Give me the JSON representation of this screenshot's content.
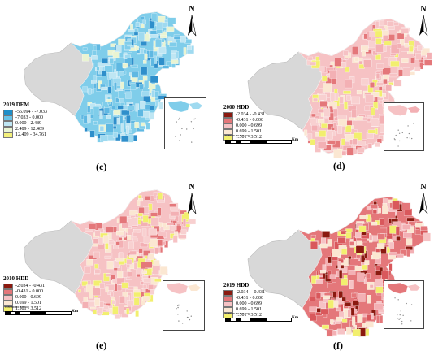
{
  "panels": [
    {
      "id": "c",
      "letter": "(c)",
      "legend": {
        "title": "2019 DEM",
        "items": [
          {
            "label": "-55.094 - -7.033",
            "color": "#1e8ec8"
          },
          {
            "label": "-7.033 - 0.000",
            "color": "#68c3e8"
          },
          {
            "label": "0.000 - 2.489",
            "color": "#bfe6f3"
          },
          {
            "label": "2.489 - 12.409",
            "color": "#e9f4d2"
          },
          {
            "label": "12.409 - 34.761",
            "color": "#f3f07a"
          }
        ]
      },
      "palette": [
        "#7fcdea",
        "#9fdaf0",
        "#5fb8e2",
        "#bfe6f3",
        "#2f8fcb",
        "#e9f4d2"
      ],
      "scalebar": null
    },
    {
      "id": "d",
      "letter": "(d)",
      "legend": {
        "title": "2000 HDD",
        "items": [
          {
            "label": "-2.034 - -0.431",
            "color": "#8b1a10"
          },
          {
            "label": "-0.431 - 0.000",
            "color": "#e4777a"
          },
          {
            "label": "0.000 - 0.699",
            "color": "#f6c2c4"
          },
          {
            "label": "0.699 - 1.501",
            "color": "#fbe7d2"
          },
          {
            "label": "1.501 - 3.512",
            "color": "#f2ef6e"
          }
        ]
      },
      "palette": [
        "#f6c2c4",
        "#f3b0b4",
        "#f8d0d0",
        "#e4777a",
        "#fbe7d2",
        "#f2ef6e"
      ],
      "scalebar": {
        "ticks": "0  150 300    600     900    1,200",
        "unit": "Km"
      }
    },
    {
      "id": "e",
      "letter": "(e)",
      "legend": {
        "title": "2010 HDD",
        "items": [
          {
            "label": "-2.034 - -0.431",
            "color": "#8b1a10"
          },
          {
            "label": "-0.431 - 0.000",
            "color": "#e4777a"
          },
          {
            "label": "0.000 - 0.699",
            "color": "#f6c2c4"
          },
          {
            "label": "0.699 - 1.501",
            "color": "#fbe7d2"
          },
          {
            "label": "1.501 - 3.512",
            "color": "#f2ef6e"
          }
        ]
      },
      "palette": [
        "#f6c2c4",
        "#fbe7d2",
        "#f3b0b4",
        "#e4777a",
        "#f2ef6e",
        "#f8d0d0"
      ],
      "scalebar": {
        "ticks": "0  150 300    600     900    1,200",
        "unit": "Km"
      }
    },
    {
      "id": "f",
      "letter": "(f)",
      "legend": {
        "title": "2019 HDD",
        "items": [
          {
            "label": "-2.034 - -0.431",
            "color": "#8b1a10"
          },
          {
            "label": "-0.431 - 0.000",
            "color": "#e4777a"
          },
          {
            "label": "0.000 - 0.699",
            "color": "#f6c2c4"
          },
          {
            "label": "0.699 - 1.501",
            "color": "#fbe7d2"
          },
          {
            "label": "1.501 - 3.512",
            "color": "#f2ef6e"
          }
        ]
      },
      "palette": [
        "#e4777a",
        "#f6c2c4",
        "#8b1a10",
        "#f3b0b4",
        "#fbe7d2",
        "#f2ef6e",
        "#d9585c"
      ],
      "scalebar": {
        "ticks": "0  150 300    600     900    1,200",
        "unit": "Km"
      }
    }
  ],
  "north_label": "N",
  "base_colors": {
    "grey_region": "#d8d8d8",
    "outline": "#bbbbbb"
  }
}
